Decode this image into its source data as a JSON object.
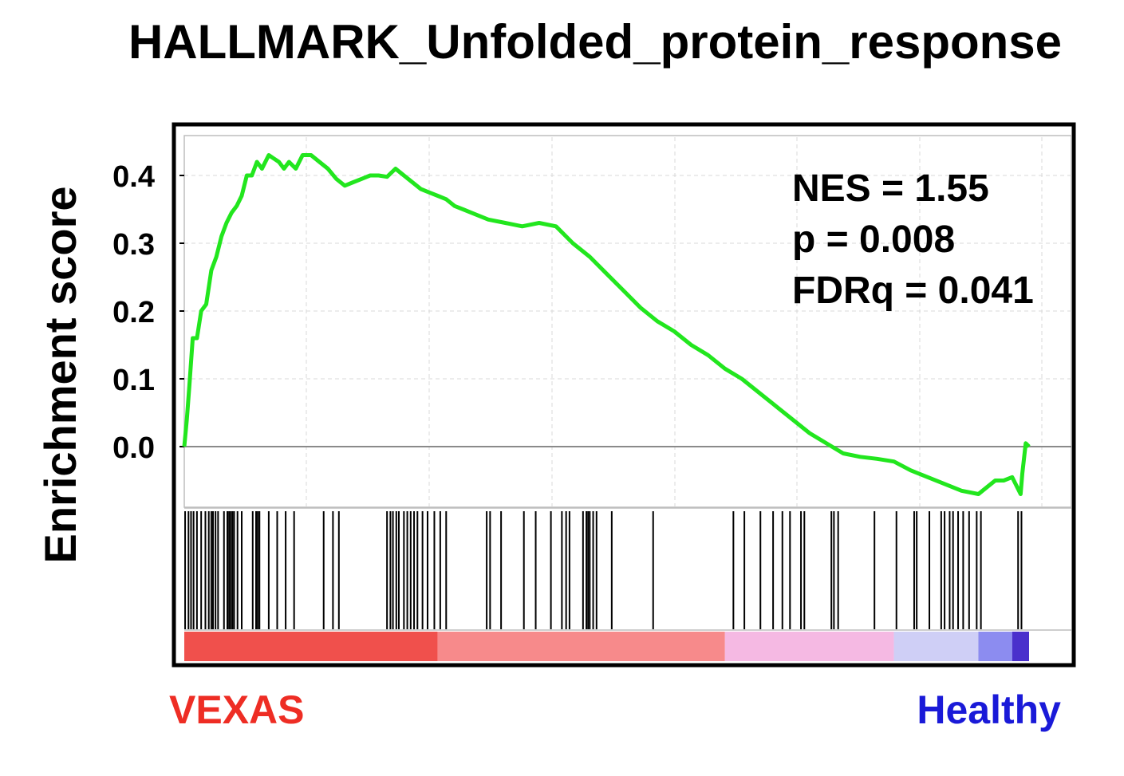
{
  "chart_data": {
    "type": "line",
    "title": "HALLMARK_Unfolded_protein_response",
    "ylabel": "Enrichment score",
    "xlabel": "",
    "ylim": [
      -0.1,
      0.46
    ],
    "xlim": [
      0,
      1
    ],
    "yticks": [
      "0.0",
      "0.1",
      "0.2",
      "0.3",
      "0.4"
    ],
    "ytick_values": [
      0.0,
      0.1,
      0.2,
      0.3,
      0.4
    ],
    "grid": true,
    "line_color": "#22e61e",
    "series": [
      {
        "x": [
          0.0,
          0.003,
          0.006,
          0.01,
          0.015,
          0.02,
          0.026,
          0.032,
          0.038,
          0.044,
          0.05,
          0.056,
          0.062,
          0.068,
          0.074,
          0.08,
          0.086,
          0.092,
          0.1,
          0.106,
          0.112,
          0.118,
          0.124,
          0.132,
          0.14,
          0.15,
          0.16,
          0.17,
          0.18,
          0.19,
          0.2,
          0.21,
          0.22,
          0.23,
          0.24,
          0.25,
          0.26,
          0.27,
          0.28,
          0.29,
          0.3,
          0.31,
          0.32,
          0.33,
          0.34,
          0.36,
          0.38,
          0.4,
          0.42,
          0.44,
          0.46,
          0.48,
          0.5,
          0.52,
          0.54,
          0.56,
          0.58,
          0.6,
          0.62,
          0.64,
          0.66,
          0.68,
          0.7,
          0.72,
          0.74,
          0.76,
          0.78,
          0.8,
          0.82,
          0.84,
          0.86,
          0.88,
          0.9,
          0.92,
          0.94,
          0.95,
          0.96,
          0.97,
          0.98,
          0.99,
          0.992,
          0.996,
          1.0
        ],
        "y": [
          0.0,
          0.04,
          0.09,
          0.16,
          0.16,
          0.2,
          0.21,
          0.26,
          0.28,
          0.31,
          0.33,
          0.345,
          0.355,
          0.37,
          0.4,
          0.4,
          0.42,
          0.41,
          0.43,
          0.425,
          0.42,
          0.41,
          0.42,
          0.41,
          0.43,
          0.43,
          0.42,
          0.41,
          0.395,
          0.385,
          0.39,
          0.395,
          0.4,
          0.4,
          0.398,
          0.41,
          0.4,
          0.39,
          0.38,
          0.375,
          0.37,
          0.365,
          0.355,
          0.35,
          0.345,
          0.335,
          0.33,
          0.325,
          0.33,
          0.325,
          0.3,
          0.28,
          0.255,
          0.23,
          0.205,
          0.185,
          0.17,
          0.15,
          0.135,
          0.115,
          0.1,
          0.08,
          0.06,
          0.04,
          0.02,
          0.005,
          -0.01,
          -0.015,
          -0.018,
          -0.022,
          -0.035,
          -0.045,
          -0.055,
          -0.065,
          -0.07,
          -0.06,
          -0.05,
          -0.05,
          -0.045,
          -0.07,
          -0.04,
          0.005,
          0.0
        ]
      }
    ],
    "annotations": [
      "NES = 1.55",
      "p = 0.008",
      "FDRq = 0.041"
    ],
    "hit_positions": [
      0.001,
      0.005,
      0.008,
      0.011,
      0.015,
      0.02,
      0.025,
      0.029,
      0.032,
      0.034,
      0.037,
      0.04,
      0.047,
      0.051,
      0.053,
      0.055,
      0.057,
      0.059,
      0.063,
      0.068,
      0.081,
      0.085,
      0.087,
      0.089,
      0.1,
      0.11,
      0.12,
      0.13,
      0.165,
      0.176,
      0.183,
      0.24,
      0.244,
      0.247,
      0.251,
      0.254,
      0.26,
      0.264,
      0.268,
      0.272,
      0.276,
      0.282,
      0.288,
      0.296,
      0.303,
      0.31,
      0.358,
      0.362,
      0.375,
      0.402,
      0.416,
      0.434,
      0.447,
      0.452,
      0.456,
      0.472,
      0.476,
      0.478,
      0.48,
      0.484,
      0.488,
      0.506,
      0.555,
      0.65,
      0.663,
      0.682,
      0.697,
      0.708,
      0.717,
      0.73,
      0.734,
      0.766,
      0.769,
      0.774,
      0.817,
      0.843,
      0.864,
      0.867,
      0.882,
      0.896,
      0.9,
      0.906,
      0.91,
      0.916,
      0.922,
      0.929,
      0.938,
      0.943,
      0.987,
      0.991
    ],
    "color_bar": [
      {
        "from": 0.0,
        "to": 0.3,
        "color": "#f0504c"
      },
      {
        "from": 0.3,
        "to": 0.64,
        "color": "#f78a8b"
      },
      {
        "from": 0.64,
        "to": 0.84,
        "color": "#f5b9e3"
      },
      {
        "from": 0.84,
        "to": 0.94,
        "color": "#cfcff6"
      },
      {
        "from": 0.94,
        "to": 0.98,
        "color": "#8c8cf0"
      },
      {
        "from": 0.98,
        "to": 1.0,
        "color": "#4a30cc"
      }
    ],
    "group_left": "VEXAS",
    "group_right": "Healthy",
    "group_left_color": "#ee2d24",
    "group_right_color": "#1a1ad8"
  }
}
